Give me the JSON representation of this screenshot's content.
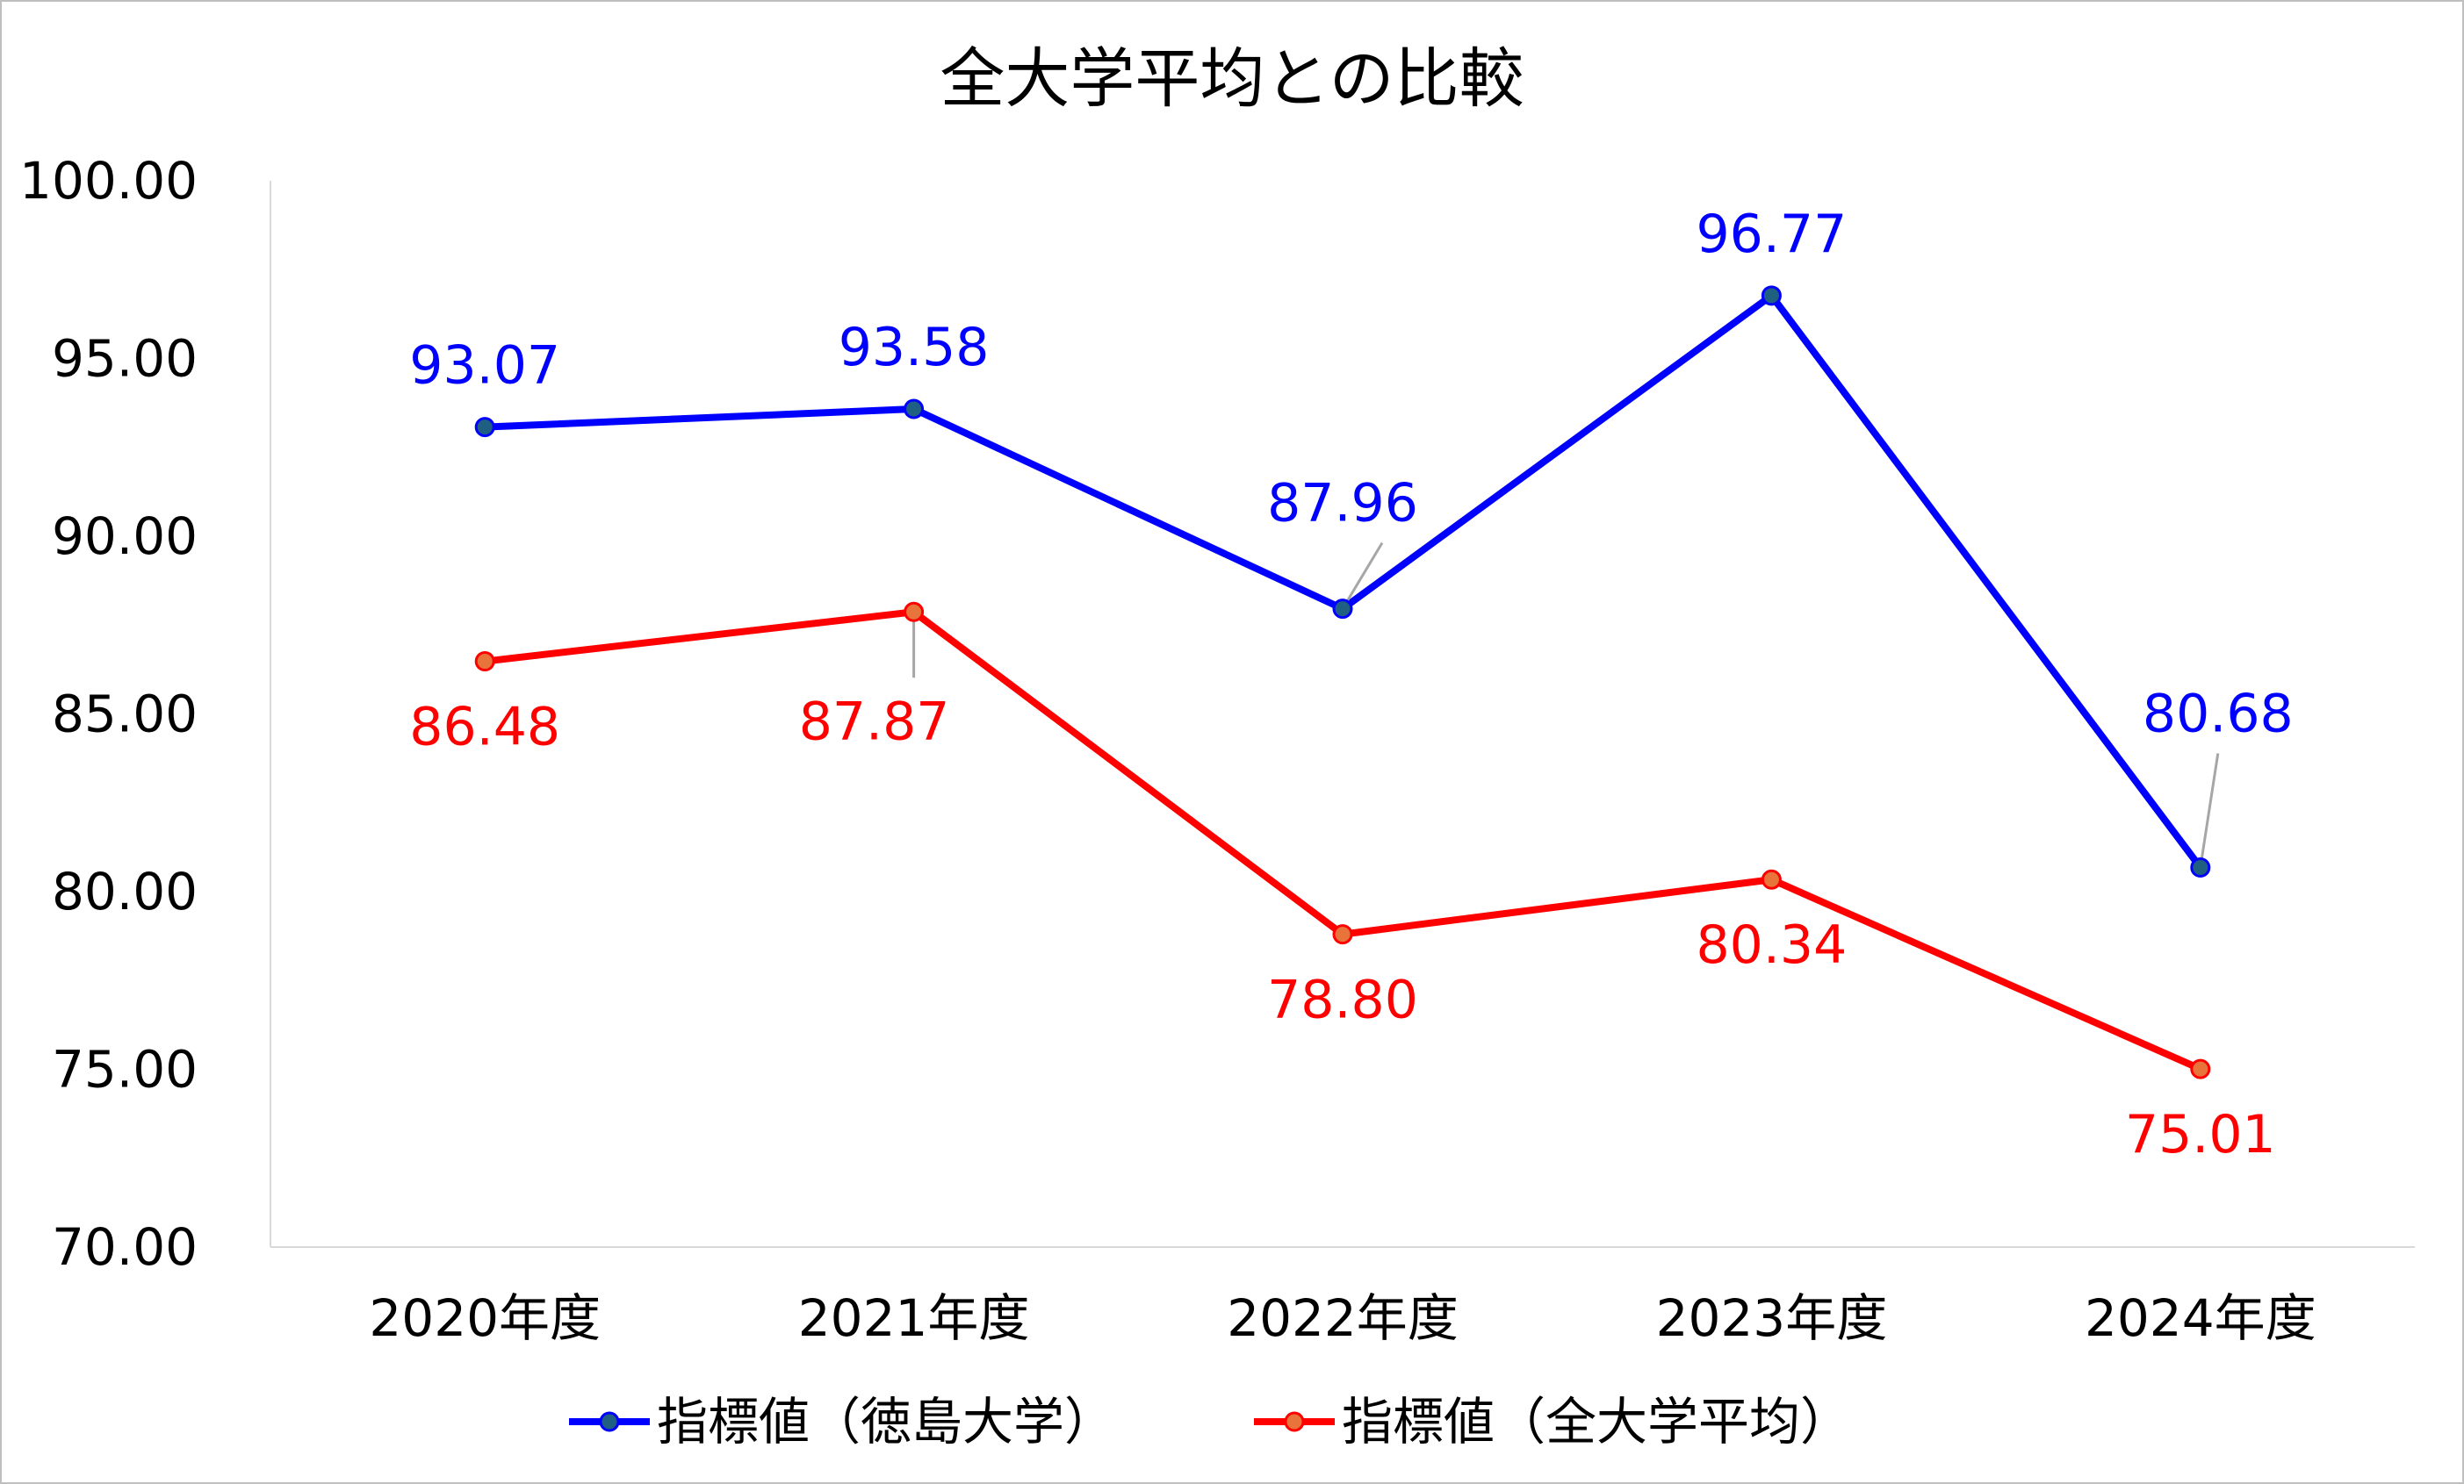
{
  "chart_data": {
    "type": "line",
    "title": "全大学平均との比較",
    "categories": [
      "2020年度",
      "2021年度",
      "2022年度",
      "2023年度",
      "2024年度"
    ],
    "ylim": [
      70,
      100
    ],
    "yticks": [
      "70.00",
      "75.00",
      "80.00",
      "85.00",
      "90.00",
      "95.00",
      "100.00"
    ],
    "grid": false,
    "legend_position": "bottom",
    "series": [
      {
        "name": "指標値（徳島大学）",
        "values": [
          93.07,
          93.58,
          87.96,
          96.77,
          80.68
        ],
        "labels": [
          "93.07",
          "93.58",
          "87.96",
          "96.77",
          "80.68"
        ],
        "label_positions": [
          "above",
          "above",
          "above",
          "above",
          "above-right"
        ],
        "line_color": "#0000ff",
        "marker_color": "#1f5f82"
      },
      {
        "name": "指標値（全大学平均）",
        "values": [
          86.48,
          87.87,
          78.8,
          80.34,
          75.01
        ],
        "labels": [
          "86.48",
          "87.87",
          "78.80",
          "80.34",
          "75.01"
        ],
        "label_positions": [
          "below",
          "below-left",
          "below",
          "below",
          "below"
        ],
        "line_color": "#ff0000",
        "marker_color": "#e8743b"
      }
    ]
  }
}
